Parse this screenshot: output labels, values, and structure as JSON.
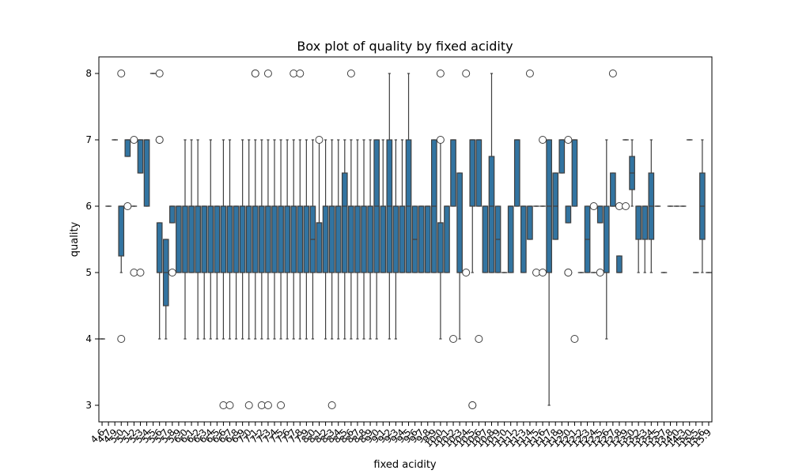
{
  "chart_data": {
    "type": "box",
    "title": "Box plot of quality by fixed acidity",
    "xlabel": "fixed acidity",
    "ylabel": "quality",
    "ylim": [
      2.75,
      8.25
    ],
    "yticks": [
      3,
      4,
      5,
      6,
      7,
      8
    ],
    "grid": false,
    "legend": "none",
    "box_color": "#3274a1",
    "x_tick_labels": [
      "4.6",
      "4.7",
      "4.9",
      "5.0",
      "5.1",
      "5.2",
      "5.3",
      "5.4",
      "5.5",
      "5.6",
      "5.7",
      "5.8",
      "5.9",
      "6.0",
      "6.1",
      "6.2",
      "6.3",
      "6.4",
      "6.5",
      "6.6",
      "6.7",
      "6.8",
      "6.9",
      "7.0",
      "7.1",
      "7.2",
      "7.3",
      "7.4",
      "7.5",
      "7.6",
      "7.7",
      "7.8",
      "7.9",
      "8.0",
      "8.1",
      "8.2",
      "8.3",
      "8.4",
      "8.5",
      "8.6",
      "8.7",
      "8.8",
      "8.9",
      "9.0",
      "9.1",
      "9.2",
      "9.3",
      "9.4",
      "9.5",
      "9.6",
      "9.7",
      "9.8",
      "9.9",
      "10.0",
      "10.1",
      "10.2",
      "10.3",
      "10.4",
      "10.5",
      "10.6",
      "10.7",
      "10.8",
      "10.9",
      "11.0",
      "11.1",
      "11.2",
      "11.3",
      "11.4",
      "11.5",
      "11.6",
      "11.7",
      "11.8",
      "11.9",
      "12.0",
      "12.1",
      "12.2",
      "12.3",
      "12.4",
      "12.5",
      "12.6",
      "12.7",
      "12.8",
      "12.9",
      "13.0",
      "13.2",
      "13.3",
      "13.4",
      "13.5",
      "13.7",
      "13.8",
      "14.0",
      "14.3",
      "15.0",
      "15.5",
      "15.6",
      "15.9"
    ],
    "categories": [
      "4.6",
      "4.7",
      "4.9",
      "5.0",
      "5.1",
      "5.2",
      "5.3",
      "5.4",
      "5.5",
      "5.6",
      "5.7",
      "5.8",
      "5.9",
      "6.0",
      "6.1",
      "6.2",
      "6.3",
      "6.4",
      "6.5",
      "6.6",
      "6.7",
      "6.8",
      "6.9",
      "7.0",
      "7.1",
      "7.2",
      "7.3",
      "7.4",
      "7.5",
      "7.6",
      "7.7",
      "7.8",
      "7.9",
      "8.0",
      "8.1",
      "8.2",
      "8.3",
      "8.4",
      "8.5",
      "8.6",
      "8.7",
      "8.8",
      "8.9",
      "9.0",
      "9.1",
      "9.2",
      "9.3",
      "9.4",
      "9.5",
      "9.6",
      "9.7",
      "9.8",
      "9.9",
      "10.0",
      "10.1",
      "10.2",
      "10.3",
      "10.4",
      "10.5",
      "10.6",
      "10.7",
      "10.8",
      "10.9",
      "11.0",
      "11.1",
      "11.2",
      "11.3",
      "11.4",
      "11.5",
      "11.6",
      "11.7",
      "11.8",
      "11.9",
      "12.0",
      "12.1",
      "12.2",
      "12.3",
      "12.4",
      "12.5",
      "12.6",
      "12.7",
      "12.8",
      "12.9",
      "13.0",
      "13.2",
      "13.3",
      "13.4",
      "13.5",
      "13.7",
      "13.8",
      "14.0",
      "14.3",
      "15.0",
      "15.5",
      "15.6",
      "15.9"
    ],
    "boxes": [
      {
        "q1": 4,
        "med": 4,
        "q3": 4,
        "lo": 4,
        "hi": 4,
        "out": []
      },
      {
        "q1": 6,
        "med": 6,
        "q3": 6,
        "lo": 6,
        "hi": 6,
        "out": []
      },
      {
        "q1": 7,
        "med": 7,
        "q3": 7,
        "lo": 7,
        "hi": 7,
        "out": []
      },
      {
        "q1": 5.25,
        "med": 6,
        "q3": 6,
        "lo": 5,
        "hi": 6,
        "out": [
          8,
          4
        ]
      },
      {
        "q1": 6.75,
        "med": 7,
        "q3": 7,
        "lo": 6.75,
        "hi": 7,
        "out": [
          6
        ]
      },
      {
        "q1": 6,
        "med": 6,
        "q3": 6,
        "lo": 6,
        "hi": 6,
        "out": [
          7,
          5
        ]
      },
      {
        "q1": 6.5,
        "med": 7,
        "q3": 7,
        "lo": 6.5,
        "hi": 7,
        "out": [
          5
        ]
      },
      {
        "q1": 6,
        "med": 7,
        "q3": 7,
        "lo": 6,
        "hi": 7,
        "out": []
      },
      {
        "q1": 8,
        "med": 8,
        "q3": 8,
        "lo": 8,
        "hi": 8,
        "out": []
      },
      {
        "q1": 5,
        "med": 5,
        "q3": 5.75,
        "lo": 4,
        "hi": 5.75,
        "out": [
          8,
          7,
          7
        ]
      },
      {
        "q1": 4.5,
        "med": 5,
        "q3": 5.5,
        "lo": 4,
        "hi": 5.5,
        "out": []
      },
      {
        "q1": 5.75,
        "med": 6,
        "q3": 6,
        "lo": 5.75,
        "hi": 6,
        "out": [
          5
        ]
      },
      {
        "q1": 5,
        "med": 6,
        "q3": 6,
        "lo": 5,
        "hi": 6,
        "out": []
      },
      {
        "q1": 5,
        "med": 6,
        "q3": 6,
        "lo": 4,
        "hi": 7,
        "out": []
      },
      {
        "q1": 5,
        "med": 6,
        "q3": 6,
        "lo": 5,
        "hi": 7,
        "out": []
      },
      {
        "q1": 5,
        "med": 6,
        "q3": 6,
        "lo": 4,
        "hi": 7,
        "out": []
      },
      {
        "q1": 5,
        "med": 6,
        "q3": 6,
        "lo": 4,
        "hi": 6,
        "out": []
      },
      {
        "q1": 5,
        "med": 6,
        "q3": 6,
        "lo": 4,
        "hi": 7,
        "out": []
      },
      {
        "q1": 5,
        "med": 6,
        "q3": 6,
        "lo": 4,
        "hi": 6,
        "out": []
      },
      {
        "q1": 5,
        "med": 6,
        "q3": 6,
        "lo": 4,
        "hi": 7,
        "out": [
          3
        ]
      },
      {
        "q1": 5,
        "med": 6,
        "q3": 6,
        "lo": 4,
        "hi": 7,
        "out": [
          3
        ]
      },
      {
        "q1": 5,
        "med": 6,
        "q3": 6,
        "lo": 4,
        "hi": 6,
        "out": []
      },
      {
        "q1": 5,
        "med": 6,
        "q3": 6,
        "lo": 4,
        "hi": 7,
        "out": []
      },
      {
        "q1": 5,
        "med": 6,
        "q3": 6,
        "lo": 4,
        "hi": 7,
        "out": [
          3
        ]
      },
      {
        "q1": 5,
        "med": 6,
        "q3": 6,
        "lo": 4,
        "hi": 7,
        "out": [
          8,
          8
        ]
      },
      {
        "q1": 5,
        "med": 6,
        "q3": 6,
        "lo": 4,
        "hi": 7,
        "out": [
          3
        ]
      },
      {
        "q1": 5,
        "med": 6,
        "q3": 6,
        "lo": 4,
        "hi": 7,
        "out": [
          8,
          3
        ]
      },
      {
        "q1": 5,
        "med": 6,
        "q3": 6,
        "lo": 4,
        "hi": 7,
        "out": []
      },
      {
        "q1": 5,
        "med": 6,
        "q3": 6,
        "lo": 4,
        "hi": 7,
        "out": [
          3
        ]
      },
      {
        "q1": 5,
        "med": 6,
        "q3": 6,
        "lo": 4,
        "hi": 7,
        "out": []
      },
      {
        "q1": 5,
        "med": 6,
        "q3": 6,
        "lo": 4,
        "hi": 7,
        "out": [
          8
        ]
      },
      {
        "q1": 5,
        "med": 6,
        "q3": 6,
        "lo": 4,
        "hi": 7,
        "out": [
          8
        ]
      },
      {
        "q1": 5,
        "med": 6,
        "q3": 6,
        "lo": 4,
        "hi": 7,
        "out": []
      },
      {
        "q1": 5,
        "med": 5.5,
        "q3": 6,
        "lo": 4,
        "hi": 7,
        "out": []
      },
      {
        "q1": 5,
        "med": 5.75,
        "q3": 5.75,
        "lo": 5,
        "hi": 7,
        "out": [
          7
        ]
      },
      {
        "q1": 5,
        "med": 6,
        "q3": 6,
        "lo": 4,
        "hi": 7,
        "out": []
      },
      {
        "q1": 5,
        "med": 6,
        "q3": 6,
        "lo": 4,
        "hi": 7,
        "out": [
          3
        ]
      },
      {
        "q1": 5,
        "med": 6,
        "q3": 6,
        "lo": 4,
        "hi": 7,
        "out": []
      },
      {
        "q1": 5,
        "med": 6,
        "q3": 6.5,
        "lo": 4,
        "hi": 7,
        "out": []
      },
      {
        "q1": 5,
        "med": 6,
        "q3": 6,
        "lo": 4,
        "hi": 7,
        "out": [
          8
        ]
      },
      {
        "q1": 5,
        "med": 6,
        "q3": 6,
        "lo": 4,
        "hi": 7,
        "out": []
      },
      {
        "q1": 5,
        "med": 6,
        "q3": 6,
        "lo": 4,
        "hi": 7,
        "out": []
      },
      {
        "q1": 5,
        "med": 6,
        "q3": 6,
        "lo": 4,
        "hi": 7,
        "out": []
      },
      {
        "q1": 5,
        "med": 6,
        "q3": 7,
        "lo": 4,
        "hi": 7,
        "out": []
      },
      {
        "q1": 5,
        "med": 6,
        "q3": 6,
        "lo": 5,
        "hi": 7,
        "out": []
      },
      {
        "q1": 5,
        "med": 6,
        "q3": 7,
        "lo": 4,
        "hi": 8,
        "out": []
      },
      {
        "q1": 5,
        "med": 6,
        "q3": 6,
        "lo": 4,
        "hi": 7,
        "out": []
      },
      {
        "q1": 5,
        "med": 6,
        "q3": 6,
        "lo": 5,
        "hi": 7,
        "out": []
      },
      {
        "q1": 5,
        "med": 6,
        "q3": 7,
        "lo": 5,
        "hi": 8,
        "out": []
      },
      {
        "q1": 5,
        "med": 5.5,
        "q3": 6,
        "lo": 5,
        "hi": 6,
        "out": []
      },
      {
        "q1": 5,
        "med": 6,
        "q3": 6,
        "lo": 5,
        "hi": 6,
        "out": []
      },
      {
        "q1": 5,
        "med": 6,
        "q3": 6,
        "lo": 5,
        "hi": 6,
        "out": []
      },
      {
        "q1": 5,
        "med": 6,
        "q3": 7,
        "lo": 5,
        "hi": 7,
        "out": []
      },
      {
        "q1": 5,
        "med": 5.75,
        "q3": 5.75,
        "lo": 4,
        "hi": 7,
        "out": [
          7,
          8
        ]
      },
      {
        "q1": 5,
        "med": 6,
        "q3": 6,
        "lo": 5,
        "hi": 6,
        "out": []
      },
      {
        "q1": 6,
        "med": 7,
        "q3": 7,
        "lo": 6,
        "hi": 7,
        "out": [
          4
        ]
      },
      {
        "q1": 5,
        "med": 5,
        "q3": 6.5,
        "lo": 4,
        "hi": 6.5,
        "out": []
      },
      {
        "q1": 5,
        "med": 5,
        "q3": 5,
        "lo": 5,
        "hi": 5,
        "out": [
          8,
          5
        ]
      },
      {
        "q1": 6,
        "med": 7,
        "q3": 7,
        "lo": 5,
        "hi": 7,
        "out": [
          3,
          3
        ]
      },
      {
        "q1": 6,
        "med": 7,
        "q3": 7,
        "lo": 6,
        "hi": 7,
        "out": [
          4
        ]
      },
      {
        "q1": 5,
        "med": 6,
        "q3": 6,
        "lo": 5,
        "hi": 6,
        "out": []
      },
      {
        "q1": 5,
        "med": 6,
        "q3": 6.75,
        "lo": 5,
        "hi": 8,
        "out": []
      },
      {
        "q1": 5,
        "med": 5.5,
        "q3": 6,
        "lo": 5,
        "hi": 6,
        "out": []
      },
      {
        "q1": 5,
        "med": 5,
        "q3": 5,
        "lo": 5,
        "hi": 5,
        "out": []
      },
      {
        "q1": 5,
        "med": 6,
        "q3": 6,
        "lo": 5,
        "hi": 6,
        "out": []
      },
      {
        "q1": 6,
        "med": 7,
        "q3": 7,
        "lo": 6,
        "hi": 7,
        "out": []
      },
      {
        "q1": 5,
        "med": 6,
        "q3": 6,
        "lo": 5,
        "hi": 6,
        "out": []
      },
      {
        "q1": 5.5,
        "med": 6,
        "q3": 6,
        "lo": 5.5,
        "hi": 6,
        "out": [
          8
        ]
      },
      {
        "q1": 6,
        "med": 6,
        "q3": 6,
        "lo": 6,
        "hi": 6,
        "out": [
          5
        ]
      },
      {
        "q1": 6,
        "med": 6,
        "q3": 6,
        "lo": 6,
        "hi": 6,
        "out": [
          7,
          5
        ]
      },
      {
        "q1": 5,
        "med": 6,
        "q3": 7,
        "lo": 3,
        "hi": 7,
        "out": []
      },
      {
        "q1": 5.5,
        "med": 6,
        "q3": 6.5,
        "lo": 5.5,
        "hi": 6.5,
        "out": []
      },
      {
        "q1": 6.5,
        "med": 7,
        "q3": 7,
        "lo": 6.5,
        "hi": 7,
        "out": []
      },
      {
        "q1": 5.75,
        "med": 6,
        "q3": 6,
        "lo": 5.75,
        "hi": 6,
        "out": [
          7,
          5,
          5
        ]
      },
      {
        "q1": 6,
        "med": 7,
        "q3": 7,
        "lo": 6,
        "hi": 7,
        "out": [
          4
        ]
      },
      {
        "q1": 5,
        "med": 5,
        "q3": 5,
        "lo": 5,
        "hi": 5,
        "out": []
      },
      {
        "q1": 5,
        "med": 5.5,
        "q3": 6,
        "lo": 5,
        "hi": 6,
        "out": []
      },
      {
        "q1": 5,
        "med": 5,
        "q3": 5,
        "lo": 5,
        "hi": 5,
        "out": [
          6
        ]
      },
      {
        "q1": 5.75,
        "med": 6,
        "q3": 6,
        "lo": 5.75,
        "hi": 6,
        "out": [
          5
        ]
      },
      {
        "q1": 5,
        "med": 5,
        "q3": 6,
        "lo": 4,
        "hi": 7,
        "out": []
      },
      {
        "q1": 6,
        "med": 6,
        "q3": 6.5,
        "lo": 6,
        "hi": 6.5,
        "out": [
          8
        ]
      },
      {
        "q1": 5,
        "med": 5,
        "q3": 5.25,
        "lo": 5,
        "hi": 5.25,
        "out": [
          6
        ]
      },
      {
        "q1": 7,
        "med": 7,
        "q3": 7,
        "lo": 7,
        "hi": 7,
        "out": [
          6
        ]
      },
      {
        "q1": 6.25,
        "med": 6.5,
        "q3": 6.75,
        "lo": 6,
        "hi": 7,
        "out": []
      },
      {
        "q1": 5.5,
        "med": 6,
        "q3": 6,
        "lo": 5,
        "hi": 6,
        "out": []
      },
      {
        "q1": 5.5,
        "med": 6,
        "q3": 6,
        "lo": 5,
        "hi": 6,
        "out": []
      },
      {
        "q1": 5.5,
        "med": 6,
        "q3": 6.5,
        "lo": 5,
        "hi": 7,
        "out": []
      },
      {
        "q1": 6,
        "med": 6,
        "q3": 6,
        "lo": 6,
        "hi": 6,
        "out": []
      },
      {
        "q1": 5,
        "med": 5,
        "q3": 5,
        "lo": 5,
        "hi": 5,
        "out": []
      },
      {
        "q1": 6,
        "med": 6,
        "q3": 6,
        "lo": 6,
        "hi": 6,
        "out": []
      },
      {
        "q1": 6,
        "med": 6,
        "q3": 6,
        "lo": 6,
        "hi": 6,
        "out": []
      },
      {
        "q1": 6,
        "med": 6,
        "q3": 6,
        "lo": 6,
        "hi": 6,
        "out": []
      },
      {
        "q1": 7,
        "med": 7,
        "q3": 7,
        "lo": 7,
        "hi": 7,
        "out": []
      },
      {
        "q1": 5,
        "med": 5,
        "q3": 5,
        "lo": 5,
        "hi": 5,
        "out": []
      },
      {
        "q1": 5.5,
        "med": 6,
        "q3": 6.5,
        "lo": 5,
        "hi": 7,
        "out": []
      },
      {
        "q1": 5,
        "med": 5,
        "q3": 5,
        "lo": 5,
        "hi": 5,
        "out": []
      }
    ]
  }
}
